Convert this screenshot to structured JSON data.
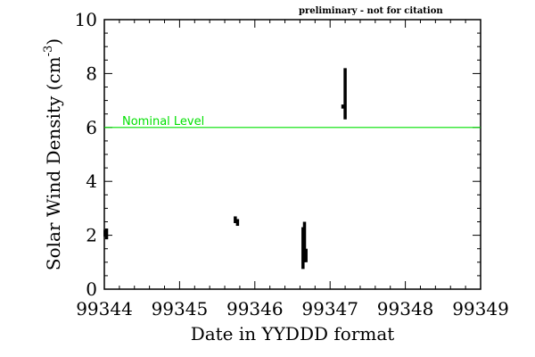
{
  "chart_data": {
    "type": "line",
    "annotation": "preliminary - not for citation",
    "xlabel": "Date in YYDDD format",
    "ylabel_main": "Solar Wind Density (cm",
    "ylabel_sup": "-3",
    "ylabel_close": ")",
    "xlim": [
      99344,
      99349
    ],
    "ylim": [
      0,
      10
    ],
    "xticks": [
      99344,
      99345,
      99346,
      99347,
      99348,
      99349
    ],
    "xtick_labels": [
      "99344",
      "99345",
      "99346",
      "99347",
      "99348",
      "99349"
    ],
    "yticks": [
      0,
      2,
      4,
      6,
      8,
      10
    ],
    "ytick_labels": [
      "0",
      "2",
      "4",
      "6",
      "8",
      "10"
    ],
    "reference_line": {
      "label": "Nominal Level",
      "value": 6,
      "color": "#00e000"
    },
    "series_color": "#000000",
    "segments": [
      {
        "x": 99344.01,
        "y": [
          1.95,
          2.2
        ]
      },
      {
        "x": 99344.03,
        "y": [
          1.85,
          2.25
        ]
      },
      {
        "x": 99345.74,
        "y": [
          2.45,
          2.7
        ]
      },
      {
        "x": 99345.77,
        "y": [
          2.35,
          2.6
        ]
      },
      {
        "x": 99346.64,
        "y": [
          0.75,
          2.3
        ]
      },
      {
        "x": 99346.66,
        "y": [
          1.0,
          2.5
        ]
      },
      {
        "x": 99346.68,
        "y": [
          1.0,
          1.5
        ]
      },
      {
        "x": 99347.17,
        "y": [
          6.7,
          6.85
        ]
      },
      {
        "x": 99347.2,
        "y": [
          6.3,
          8.2
        ]
      }
    ]
  }
}
